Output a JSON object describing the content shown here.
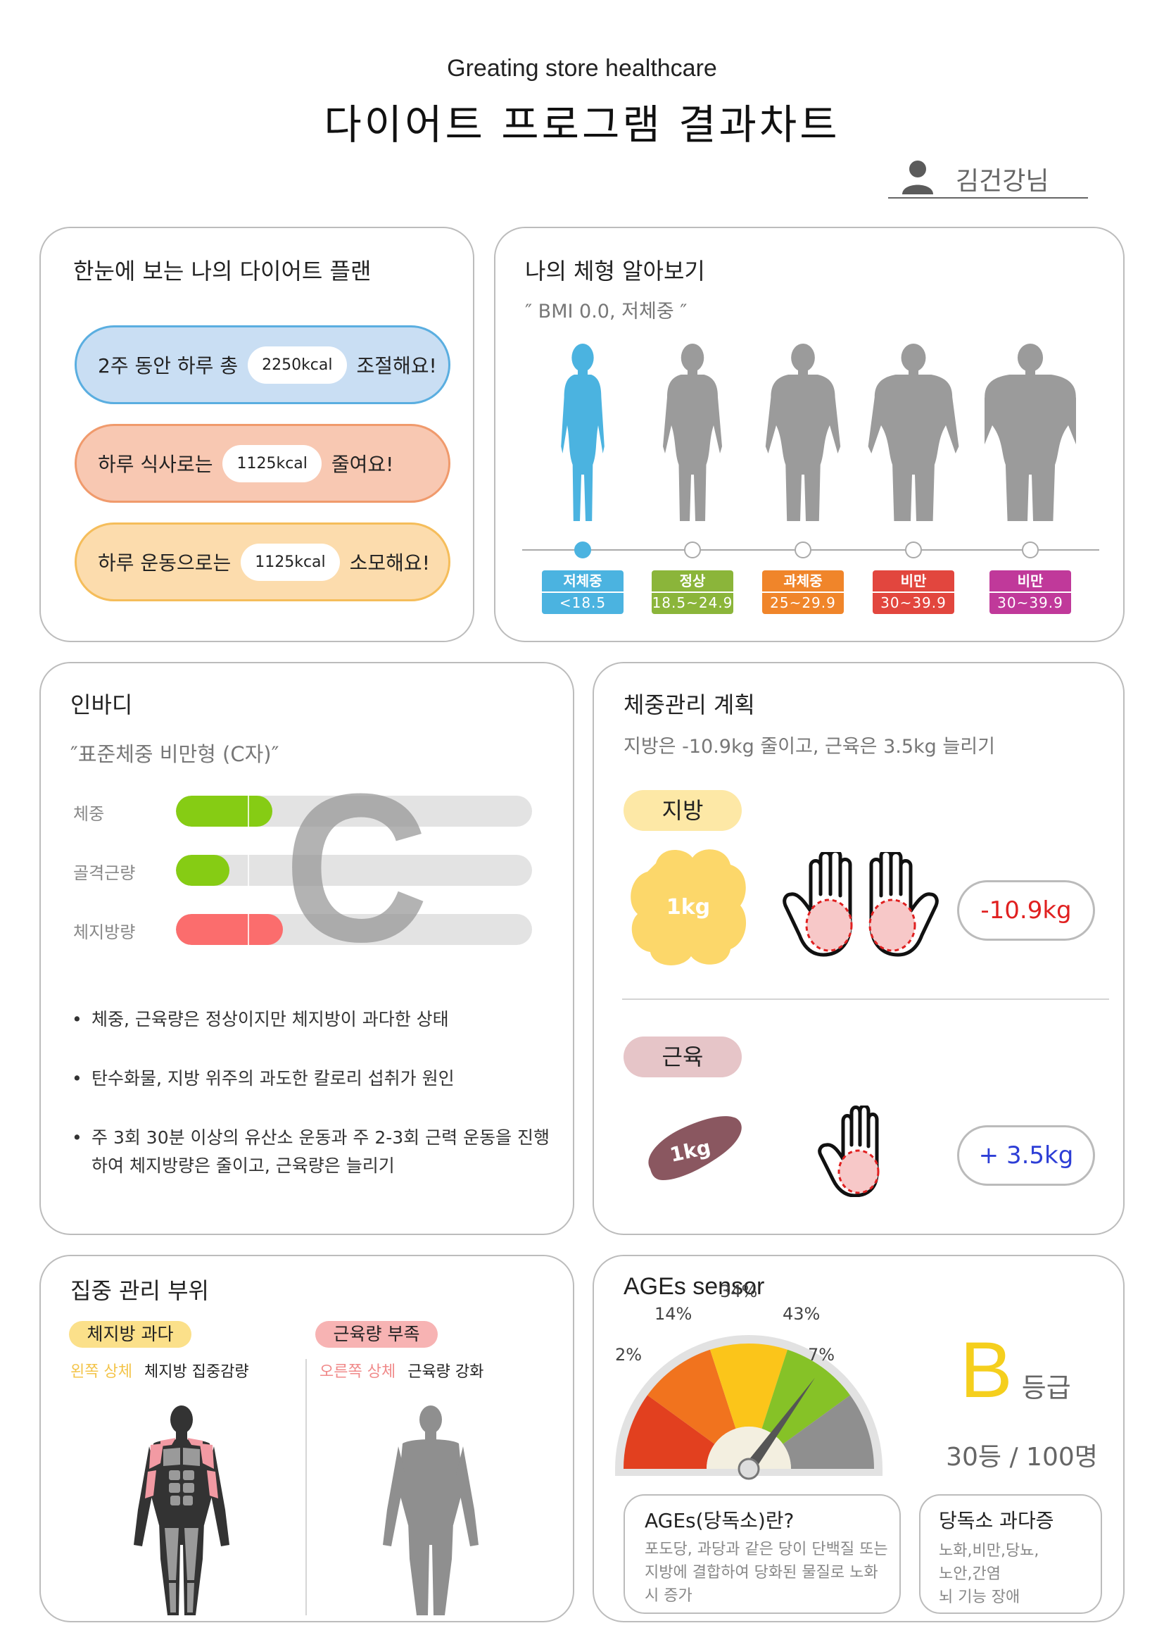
{
  "header": {
    "subtitle": "Greating store healthcare",
    "title": "다이어트 프로그램 결과차트",
    "user_name": "김건강님"
  },
  "plan": {
    "title": "한눈에 보는 나의 다이어트 플랜",
    "rows": [
      {
        "prefix": "2주 동안 하루 총",
        "value": "2250kcal",
        "suffix": "조절해요!",
        "fill": "#c9def3",
        "border": "#5aaee0"
      },
      {
        "prefix": "하루 식사로는",
        "value": "1125kcal",
        "suffix": "줄여요!",
        "fill": "#f8c8b2",
        "border": "#f09a6c"
      },
      {
        "prefix": "하루 운동으로는",
        "value": "1125kcal",
        "suffix": "소모해요!",
        "fill": "#fcdcad",
        "border": "#f5bd5a"
      }
    ]
  },
  "body_type": {
    "title": "나의 체형 알아보기",
    "bmi_text": "″ BMI 0.0, 저체중 ″",
    "active_index": 0,
    "categories": [
      {
        "name": "저체중",
        "range": "<18.5",
        "color": "#4bb3e0"
      },
      {
        "name": "정상",
        "range": "18.5~24.9",
        "color": "#8bb53a"
      },
      {
        "name": "과체중",
        "range": "25~29.9",
        "color": "#f0852a"
      },
      {
        "name": "비만",
        "range": "30~39.9",
        "color": "#e2463e"
      },
      {
        "name": "비만",
        "range": "30~39.9",
        "color": "#c0399a"
      }
    ],
    "active_color": "#4bb3e0",
    "inactive_color": "#9b9b9b"
  },
  "inbody": {
    "title": "인바디",
    "type_text": "″표준체중 비만형 (C자)″",
    "type_letter": "C",
    "bars": [
      {
        "label": "체중",
        "level": 0.27,
        "color": "#86cc14"
      },
      {
        "label": "골격근량",
        "level": 0.15,
        "color": "#86cc14"
      },
      {
        "label": "체지방량",
        "level": 0.3,
        "color": "#fb6d6d"
      }
    ],
    "bullets": [
      "체중, 근육량은 정상이지만 체지방이 과다한 상태",
      "탄수화물, 지방 위주의 과도한 칼로리 섭취가 원인",
      "주 3회 30분 이상의 유산소 운동과 주 2-3회 근력 운동을 진행하여 체지방량은 줄이고, 근육량은 늘리기"
    ]
  },
  "weight_plan": {
    "title": "체중관리 계획",
    "summary": "지방은 -10.9kg 줄이고, 근육은 3.5kg 늘리기",
    "fat": {
      "label": "지방",
      "unit": "1kg",
      "result": "-10.9kg",
      "tag_color": "#fde8a6",
      "blob_color": "#fcd76a",
      "result_color": "#e02020"
    },
    "muscle": {
      "label": "근육",
      "unit": "1kg",
      "result": "+ 3.5kg",
      "tag_color": "#e6c5c8",
      "blob_color": "#8a5760",
      "result_color": "#2d3ed6"
    }
  },
  "focus": {
    "title": "집중 관리 부위",
    "left": {
      "tag": "체지방 과다",
      "side": "왼쪽 상체",
      "action": "체지방 집중감량",
      "tag_color": "#fbe08a",
      "side_color": "#f3c44a"
    },
    "right": {
      "tag": "근육량 부족",
      "side": "오른쪽 상체",
      "action": "근육량 강화",
      "tag_color": "#f7b3b3",
      "side_color": "#f08a8a"
    }
  },
  "ages": {
    "title": "AGEs sensor",
    "segments": [
      {
        "label": "2%",
        "value": 2,
        "color": "#e2401f"
      },
      {
        "label": "14%",
        "value": 14,
        "color": "#f1731e"
      },
      {
        "label": "34%",
        "value": 34,
        "color": "#fbc51a"
      },
      {
        "label": "43%",
        "value": 43,
        "color": "#86c227"
      },
      {
        "label": "7%",
        "value": 7,
        "color": "#8f8f8f"
      }
    ],
    "needle_fraction": 0.7,
    "grade_letter": "B",
    "grade_suffix": "등급",
    "rank": "30등 / 100명",
    "grade_color": "#f5cf1d",
    "info_title": "AGEs(당독소)란?",
    "info_text": "포도당, 과당과 같은 당이 단백질 또는 지방에 결합하여 당화된 물질로 노화 시 증가",
    "excess_title": "당독소 과다증",
    "excess_lines": [
      "노화,비만,당뇨,",
      "노안,간염",
      "뇌 기능 장애"
    ]
  }
}
